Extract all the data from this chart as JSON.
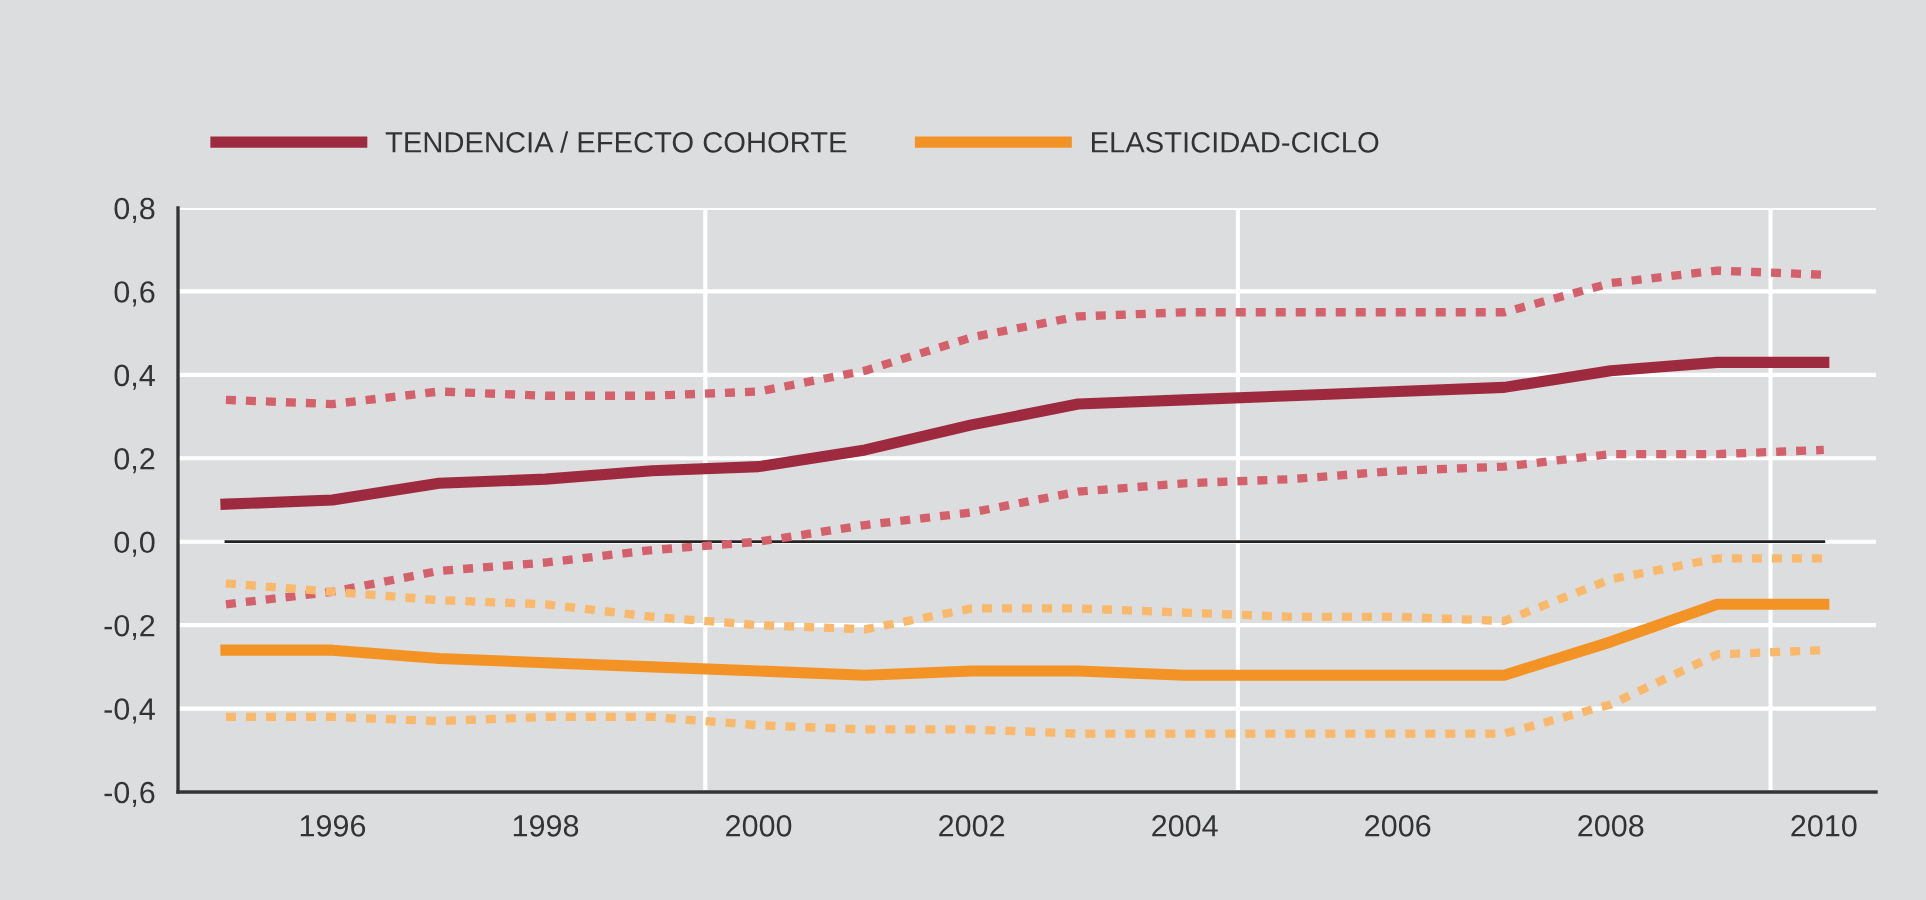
{
  "chart_data": {
    "type": "line",
    "x": [
      1995,
      1996,
      1997,
      1998,
      1999,
      2000,
      2001,
      2002,
      2003,
      2004,
      2005,
      2006,
      2007,
      2008,
      2009,
      2010
    ],
    "series": [
      {
        "name": "TENDENCIA / EFECTO COHORTE",
        "color": "#9e2a3f",
        "line_style": "solid",
        "values": [
          0.09,
          0.1,
          0.14,
          0.15,
          0.17,
          0.18,
          0.22,
          0.28,
          0.33,
          0.34,
          0.35,
          0.36,
          0.37,
          0.41,
          0.43,
          0.43
        ]
      },
      {
        "color": "#d4606b",
        "line_style": "dotted",
        "values": [
          0.34,
          0.33,
          0.36,
          0.35,
          0.35,
          0.36,
          0.41,
          0.49,
          0.54,
          0.55,
          0.55,
          0.55,
          0.55,
          0.62,
          0.65,
          0.64
        ]
      },
      {
        "color": "#d4606b",
        "line_style": "dotted",
        "values": [
          -0.15,
          -0.12,
          -0.07,
          -0.05,
          -0.02,
          0.0,
          0.04,
          0.07,
          0.12,
          0.14,
          0.15,
          0.17,
          0.18,
          0.21,
          0.21,
          0.22
        ]
      },
      {
        "name": "ELASTICIDAD-CICLO",
        "color": "#f39325",
        "line_style": "solid",
        "values": [
          -0.26,
          -0.26,
          -0.28,
          -0.29,
          -0.3,
          -0.31,
          -0.32,
          -0.31,
          -0.31,
          -0.32,
          -0.32,
          -0.32,
          -0.32,
          -0.24,
          -0.15,
          -0.15
        ]
      },
      {
        "color": "#f9b86a",
        "line_style": "dotted",
        "values": [
          -0.1,
          -0.12,
          -0.14,
          -0.15,
          -0.18,
          -0.2,
          -0.21,
          -0.16,
          -0.16,
          -0.17,
          -0.18,
          -0.18,
          -0.19,
          -0.09,
          -0.04,
          -0.04
        ]
      },
      {
        "color": "#f9b86a",
        "line_style": "dotted",
        "values": [
          -0.42,
          -0.42,
          -0.43,
          -0.42,
          -0.42,
          -0.44,
          -0.45,
          -0.45,
          -0.46,
          -0.46,
          -0.46,
          -0.46,
          -0.46,
          -0.39,
          -0.27,
          -0.26
        ]
      }
    ],
    "xlim": [
      1994.55,
      2010.49
    ],
    "xticks": [
      1996,
      1998,
      2000,
      2002,
      2004,
      2006,
      2008,
      2010
    ],
    "ylim": [
      -0.6,
      0.8
    ],
    "yticks": [
      {
        "value": -0.6,
        "label": "-0,6"
      },
      {
        "value": -0.4,
        "label": "-0,4"
      },
      {
        "value": -0.2,
        "label": "-0,2"
      },
      {
        "value": 0.0,
        "label": "0,0"
      },
      {
        "value": 0.2,
        "label": "0,2"
      },
      {
        "value": 0.4,
        "label": "0,4"
      },
      {
        "value": 0.6,
        "label": "0,6"
      },
      {
        "value": 0.8,
        "label": "0,8"
      }
    ],
    "ref_lines": [
      {
        "axis": "x",
        "value": 1999.5,
        "color": "#ffffff"
      },
      {
        "axis": "x",
        "value": 2004.5,
        "color": "#ffffff"
      },
      {
        "axis": "x",
        "value": 2009.5,
        "color": "#ffffff"
      },
      {
        "axis": "y",
        "value": 0.0,
        "color": "#222222"
      }
    ],
    "grid": "y",
    "legend": "top left"
  }
}
